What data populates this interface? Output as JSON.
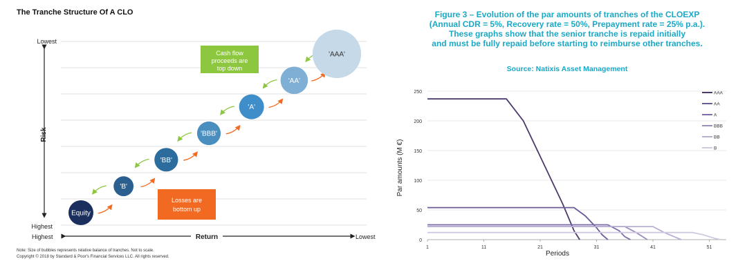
{
  "left_chart": {
    "title": "The Tranche Structure Of A CLO",
    "y_axis_label": "Risk",
    "y_top_label": "Lowest",
    "y_bottom_label": "Highest",
    "x_axis_label": "Return",
    "x_left_label": "Highest",
    "x_right_label": "Lowest",
    "callout_top": [
      "Cash flow",
      "proceeds are",
      "top down"
    ],
    "callout_bottom": [
      "Losses are",
      "bottom up"
    ],
    "notes": [
      "Note: Size of bubbles represents relative balance of tranches. Not to scale.",
      "Copyright © 2018 by Standard & Poor's Financial Services LLC. All rights reserved."
    ],
    "colors": {
      "green": "#8dc63f",
      "orange": "#f26a21"
    }
  },
  "right_header": {
    "title_lines": [
      "Figure 3 – Evolution of the par amounts of tranches of the CLOEXP",
      "(Annual CDR = 5%, Recovery rate = 50%, Prepayment rate = 25% p.a.).",
      "These graphs show that the senior tranche is repaid initially",
      "and must be fully repaid before starting to reimburse other tranches."
    ],
    "source": "Source: Natixis Asset Management",
    "accent": "#1aa8c6"
  },
  "chart_data": [
    {
      "type": "scatter",
      "title": "The Tranche Structure Of A CLO",
      "xlabel": "Return",
      "ylabel": "Risk",
      "categories": [
        "Equity",
        "'B'",
        "'BB'",
        "'BBB'",
        "'A'",
        "'AA'",
        "'AAA'"
      ],
      "risk_rank": [
        7,
        6,
        5,
        4,
        3,
        2,
        1
      ],
      "return_rank": [
        1,
        2,
        3,
        4,
        5,
        6,
        7
      ],
      "relative_size": [
        1.0,
        0.8,
        0.95,
        0.95,
        1.0,
        1.1,
        1.95
      ],
      "colors": [
        "#1b2f5e",
        "#2a5f8f",
        "#2d6d9e",
        "#4a8dbf",
        "#3f8ec9",
        "#7fafd5",
        "#c6d9e8"
      ],
      "label_colors": [
        "#ffffff",
        "#ffffff",
        "#ffffff",
        "#ffffff",
        "#ffffff",
        "#ffffff",
        "#333333"
      ]
    },
    {
      "type": "line",
      "title": "",
      "xlabel": "Periods",
      "ylabel": "Par amounts (M €)",
      "xlim": [
        1,
        54
      ],
      "ylim": [
        0,
        250
      ],
      "x_ticks": [
        1,
        11,
        21,
        31,
        41,
        51
      ],
      "y_ticks": [
        0,
        50,
        100,
        150,
        200,
        250
      ],
      "legend_position": "right",
      "series": [
        {
          "name": "AAA",
          "color": "#4b3a6b",
          "x": [
            1,
            15,
            18,
            22,
            25,
            27,
            28
          ],
          "values": [
            237,
            237,
            200,
            120,
            60,
            15,
            0
          ]
        },
        {
          "name": "AA",
          "color": "#6a5a96",
          "x": [
            1,
            27,
            29,
            31,
            32,
            33
          ],
          "values": [
            54,
            54,
            40,
            20,
            8,
            0
          ]
        },
        {
          "name": "A",
          "color": "#7e6aa8",
          "x": [
            1,
            33,
            35,
            36,
            37
          ],
          "values": [
            25,
            25,
            15,
            5,
            0
          ]
        },
        {
          "name": "BBB",
          "color": "#9b8dbd",
          "x": [
            1,
            36,
            38,
            40
          ],
          "values": [
            22,
            22,
            12,
            0
          ]
        },
        {
          "name": "BB",
          "color": "#b7aed1",
          "x": [
            1,
            41,
            43,
            45,
            46
          ],
          "values": [
            22,
            22,
            12,
            4,
            0
          ]
        },
        {
          "name": "B",
          "color": "#cfc8e0",
          "x": [
            1,
            48,
            50,
            52,
            53
          ],
          "values": [
            12,
            12,
            8,
            2,
            0
          ]
        }
      ]
    }
  ]
}
